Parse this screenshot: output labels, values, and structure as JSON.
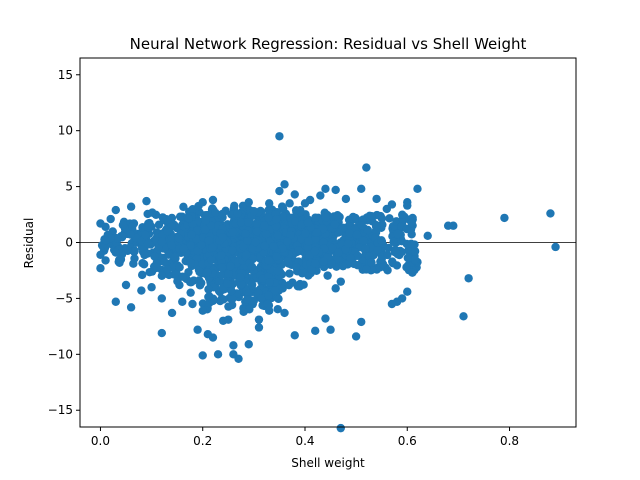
{
  "chart_data": {
    "type": "scatter",
    "title": "Neural Network Regression: Residual vs Shell Weight",
    "xlabel": "Shell weight",
    "ylabel": "Residual",
    "xlim": [
      -0.04,
      0.93
    ],
    "ylim": [
      -16.5,
      16.5
    ],
    "xticks": [
      0.0,
      0.2,
      0.4,
      0.6,
      0.8
    ],
    "xtick_labels": [
      "0.0",
      "0.2",
      "0.4",
      "0.6",
      "0.8"
    ],
    "yticks": [
      -15,
      -10,
      -5,
      0,
      5,
      10,
      15
    ],
    "ytick_labels": [
      "−15",
      "−10",
      "−5",
      "0",
      "5",
      "10",
      "15"
    ],
    "grid": false,
    "reference_line": {
      "y": 0
    },
    "marker_color": "#1f77b4",
    "series": [
      {
        "points": [
          [
            0.35,
            9.5
          ],
          [
            0.36,
            5.2
          ],
          [
            0.52,
            6.7
          ],
          [
            0.62,
            4.8
          ],
          [
            0.51,
            4.8
          ],
          [
            0.44,
            4.8
          ],
          [
            0.46,
            4.7
          ],
          [
            0.35,
            4.6
          ],
          [
            0.79,
            2.2
          ],
          [
            0.88,
            2.6
          ],
          [
            0.89,
            -0.4
          ],
          [
            0.72,
            -3.2
          ],
          [
            0.71,
            -6.6
          ],
          [
            0.47,
            -16.6
          ],
          [
            0.27,
            -10.4
          ],
          [
            0.26,
            -10.0
          ],
          [
            0.2,
            -10.1
          ],
          [
            0.23,
            -10.0
          ],
          [
            0.29,
            -9.1
          ],
          [
            0.26,
            -9.2
          ],
          [
            0.12,
            -8.1
          ],
          [
            0.22,
            -8.5
          ],
          [
            0.19,
            -7.8
          ],
          [
            0.38,
            -8.3
          ],
          [
            0.42,
            -7.9
          ],
          [
            0.45,
            -7.8
          ],
          [
            0.5,
            -8.4
          ],
          [
            0.51,
            -7.1
          ],
          [
            0.44,
            -6.8
          ],
          [
            0.58,
            -5.3
          ],
          [
            0.59,
            -5.0
          ],
          [
            0.6,
            -4.4
          ],
          [
            0.57,
            -5.5
          ],
          [
            0.61,
            -2.7
          ],
          [
            0.68,
            1.5
          ],
          [
            0.69,
            1.5
          ],
          [
            0.64,
            0.6
          ],
          [
            0.6,
            3.6
          ],
          [
            0.6,
            3.3
          ],
          [
            0.57,
            3.4
          ],
          [
            0.56,
            3.0
          ],
          [
            0.54,
            3.9
          ],
          [
            0.48,
            3.9
          ],
          [
            0.03,
            -5.3
          ],
          [
            0.06,
            -5.8
          ],
          [
            0.03,
            2.9
          ],
          [
            0.06,
            3.2
          ],
          [
            0.09,
            3.7
          ],
          [
            0.22,
            3.8
          ],
          [
            0.2,
            3.6
          ],
          [
            0.33,
            3.5
          ],
          [
            0.29,
            3.6
          ],
          [
            0.37,
            3.5
          ],
          [
            0.4,
            3.5
          ],
          [
            0.41,
            3.8
          ],
          [
            0.43,
            4.2
          ],
          [
            0.38,
            4.3
          ],
          [
            0.21,
            -8.2
          ],
          [
            0.24,
            -7.0
          ],
          [
            0.25,
            -6.9
          ],
          [
            0.31,
            -7.6
          ],
          [
            0.28,
            -6.2
          ],
          [
            0.33,
            -6.1
          ],
          [
            0.36,
            -6.3
          ],
          [
            0.31,
            -6.9
          ],
          [
            0.14,
            -6.3
          ],
          [
            0.16,
            -5.3
          ],
          [
            0.18,
            -5.5
          ],
          [
            0.2,
            -6.1
          ],
          [
            0.12,
            -5.0
          ],
          [
            0.1,
            -4.0
          ],
          [
            0.08,
            -4.3
          ],
          [
            0.05,
            -3.8
          ],
          [
            0.46,
            -4.1
          ],
          [
            0.47,
            -3.5
          ],
          [
            0.52,
            -2.4
          ],
          [
            0.53,
            -1.8
          ],
          [
            0.55,
            -1.5
          ],
          [
            0.0,
            -2.3
          ],
          [
            0.0,
            -1.1
          ],
          [
            0.01,
            -1.6
          ],
          [
            0.0,
            1.7
          ],
          [
            0.01,
            1.4
          ],
          [
            0.02,
            2.1
          ],
          [
            0.02,
            0.4
          ],
          [
            0.03,
            -0.9
          ],
          [
            0.01,
            0.2
          ]
        ],
        "dense_region_rows": [
          {
            "x": [
              0.0,
              0.55
            ],
            "y": [
              -1.0,
              1.0
            ]
          },
          {
            "x": [
              0.03,
              0.5
            ],
            "y": [
              -2.0,
              2.2
            ]
          },
          {
            "x": [
              0.08,
              0.45
            ],
            "y": [
              -3.0,
              3.0
            ]
          },
          {
            "x": [
              0.15,
              0.4
            ],
            "y": [
              -4.5,
              3.3
            ]
          },
          {
            "x": [
              0.2,
              0.35
            ],
            "y": [
              -6.0,
              2.8
            ]
          },
          {
            "x": [
              0.4,
              0.62
            ],
            "y": [
              -2.5,
              2.5
            ]
          }
        ]
      }
    ]
  }
}
